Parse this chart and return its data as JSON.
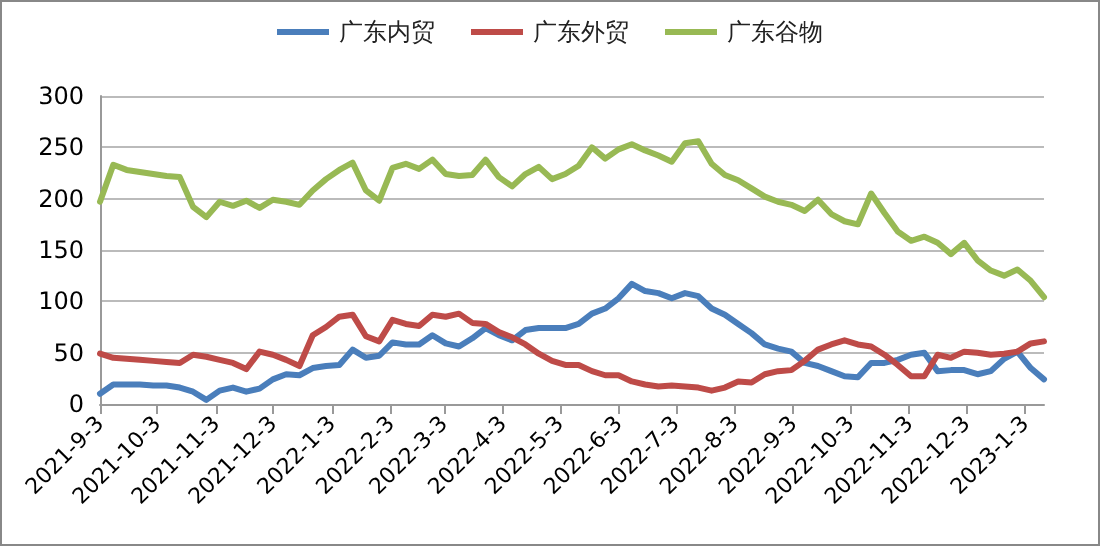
{
  "chart_data": {
    "type": "line",
    "x": [
      "2021-09-03",
      "2021-09-10",
      "2021-09-17",
      "2021-09-24",
      "2021-10-01",
      "2021-10-08",
      "2021-10-15",
      "2021-10-22",
      "2021-10-29",
      "2021-11-05",
      "2021-11-12",
      "2021-11-19",
      "2021-11-26",
      "2021-12-03",
      "2021-12-10",
      "2021-12-17",
      "2021-12-24",
      "2021-12-31",
      "2022-01-07",
      "2022-01-14",
      "2022-01-21",
      "2022-01-28",
      "2022-02-04",
      "2022-02-11",
      "2022-02-18",
      "2022-02-25",
      "2022-03-04",
      "2022-03-11",
      "2022-03-18",
      "2022-03-25",
      "2022-04-01",
      "2022-04-08",
      "2022-04-15",
      "2022-04-22",
      "2022-04-29",
      "2022-05-06",
      "2022-05-13",
      "2022-05-20",
      "2022-05-27",
      "2022-06-03",
      "2022-06-10",
      "2022-06-17",
      "2022-06-24",
      "2022-07-01",
      "2022-07-08",
      "2022-07-15",
      "2022-07-22",
      "2022-07-29",
      "2022-08-05",
      "2022-08-12",
      "2022-08-19",
      "2022-08-26",
      "2022-09-02",
      "2022-09-09",
      "2022-09-16",
      "2022-09-23",
      "2022-09-30",
      "2022-10-07",
      "2022-10-14",
      "2022-10-21",
      "2022-10-28",
      "2022-11-04",
      "2022-11-11",
      "2022-11-18",
      "2022-11-25",
      "2022-12-02",
      "2022-12-09",
      "2022-12-16",
      "2022-12-23",
      "2022-12-30",
      "2023-01-06",
      "2023-01-13"
    ],
    "series": [
      {
        "name": "广东内贸",
        "color": "#4a7ebb",
        "values": [
          10,
          19,
          19,
          19,
          18,
          18,
          16,
          12,
          4,
          13,
          16,
          12,
          15,
          24,
          29,
          28,
          35,
          37,
          38,
          53,
          45,
          47,
          60,
          58,
          58,
          67,
          59,
          56,
          64,
          74,
          67,
          62,
          72,
          74,
          74,
          74,
          78,
          88,
          93,
          103,
          117,
          110,
          108,
          103,
          108,
          105,
          93,
          87,
          78,
          69,
          58,
          54,
          51,
          40,
          37,
          32,
          27,
          26,
          40,
          40,
          43,
          48,
          50,
          32,
          33,
          33,
          29,
          32,
          44,
          51,
          35,
          24
        ]
      },
      {
        "name": "广东外贸",
        "color": "#be4b48",
        "values": [
          49,
          45,
          44,
          43,
          42,
          41,
          40,
          48,
          46,
          43,
          40,
          34,
          51,
          48,
          43,
          37,
          67,
          75,
          85,
          87,
          66,
          61,
          82,
          78,
          76,
          87,
          85,
          88,
          79,
          78,
          70,
          65,
          58,
          49,
          42,
          38,
          38,
          32,
          28,
          28,
          22,
          19,
          17,
          18,
          17,
          16,
          13,
          16,
          22,
          21,
          29,
          32,
          33,
          42,
          53,
          58,
          62,
          58,
          56,
          48,
          38,
          27,
          27,
          48,
          45,
          51,
          50,
          48,
          49,
          51,
          59,
          61
        ]
      },
      {
        "name": "广东谷物",
        "color": "#98b954",
        "values": [
          197,
          233,
          228,
          226,
          224,
          222,
          221,
          192,
          182,
          197,
          193,
          198,
          191,
          199,
          197,
          194,
          208,
          219,
          228,
          235,
          208,
          198,
          230,
          234,
          229,
          238,
          224,
          222,
          223,
          238,
          221,
          212,
          224,
          231,
          219,
          224,
          232,
          250,
          239,
          248,
          253,
          247,
          242,
          236,
          254,
          256,
          234,
          223,
          218,
          210,
          202,
          197,
          194,
          188,
          199,
          185,
          178,
          175,
          205,
          186,
          168,
          159,
          163,
          157,
          146,
          157,
          140,
          130,
          125,
          131,
          120,
          104
        ]
      }
    ],
    "xlim": [
      "2021-09-03",
      "2023-01-13"
    ],
    "xticks": [
      {
        "value": "2021-09-03",
        "label": "2021-9-3"
      },
      {
        "value": "2021-10-03",
        "label": "2021-10-3"
      },
      {
        "value": "2021-11-03",
        "label": "2021-11-3"
      },
      {
        "value": "2021-12-03",
        "label": "2021-12-3"
      },
      {
        "value": "2022-01-03",
        "label": "2022-1-3"
      },
      {
        "value": "2022-02-03",
        "label": "2022-2-3"
      },
      {
        "value": "2022-03-03",
        "label": "2022-3-3"
      },
      {
        "value": "2022-04-03",
        "label": "2022-4-3"
      },
      {
        "value": "2022-05-03",
        "label": "2022-5-3"
      },
      {
        "value": "2022-06-03",
        "label": "2022-6-3"
      },
      {
        "value": "2022-07-03",
        "label": "2022-7-3"
      },
      {
        "value": "2022-08-03",
        "label": "2022-8-3"
      },
      {
        "value": "2022-09-03",
        "label": "2022-9-3"
      },
      {
        "value": "2022-10-03",
        "label": "2022-10-3"
      },
      {
        "value": "2022-11-03",
        "label": "2022-11-3"
      },
      {
        "value": "2022-12-03",
        "label": "2022-12-3"
      },
      {
        "value": "2023-01-03",
        "label": "2023-1-3"
      }
    ],
    "ylim": [
      0,
      300
    ],
    "yticks": [
      0,
      50,
      100,
      150,
      200,
      250,
      300
    ],
    "grid": "y",
    "legend": "top",
    "marker": "none",
    "line_style": "solid"
  }
}
